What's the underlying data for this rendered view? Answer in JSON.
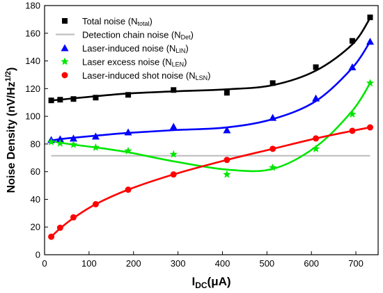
{
  "chart_data": {
    "type": "scatter",
    "xlabel_main": "I",
    "xlabel_sub": "DC",
    "xlabel_unit": "(μA)",
    "ylabel_main": "Noise Density (nV/Hz",
    "ylabel_sup": "1/2",
    "ylabel_end": ")",
    "xlim": [
      0,
      750
    ],
    "ylim": [
      0,
      180
    ],
    "xticks": [
      0,
      100,
      200,
      300,
      400,
      500,
      600,
      700
    ],
    "yticks": [
      0,
      20,
      40,
      60,
      80,
      100,
      120,
      140,
      160,
      180
    ],
    "grid": false,
    "legend_position": "top-left",
    "series": [
      {
        "name": "Total noise (N",
        "sub": "total",
        "close": ")",
        "color": "#000000",
        "marker": "square",
        "x": [
          15,
          35,
          65,
          115,
          188,
          290,
          410,
          513,
          610,
          692,
          732
        ],
        "y": [
          111.5,
          112,
          112.5,
          113.5,
          115.5,
          119,
          117,
          124,
          135.5,
          154.5,
          171.5
        ],
        "fit": [
          111.5,
          112,
          113,
          114.5,
          116.5,
          118,
          119.5,
          122.5,
          133,
          152,
          171
        ]
      },
      {
        "name": "Detection chain noise (N",
        "sub": "Det",
        "close": ")",
        "color": "#bfbfbf",
        "marker": "line",
        "x": [
          15,
          732
        ],
        "y": [
          71.5,
          71.5
        ]
      },
      {
        "name": "Laser-induced noise (N",
        "sub": "LIN",
        "close": ")",
        "color": "#0000ff",
        "marker": "triangle",
        "x": [
          15,
          35,
          65,
          115,
          188,
          290,
          410,
          513,
          610,
          692,
          732
        ],
        "y": [
          83,
          83.5,
          84,
          85.5,
          88.5,
          92.5,
          90,
          99,
          113,
          135.5,
          154
        ],
        "fit": [
          82.5,
          83.5,
          84.5,
          86,
          88,
          90,
          92,
          98,
          111,
          135,
          154
        ]
      },
      {
        "name": "Laser excess noise (N",
        "sub": "LEN",
        "close": ")",
        "color": "#00e600",
        "marker": "star",
        "x": [
          15,
          35,
          65,
          115,
          188,
          290,
          410,
          513,
          610,
          692,
          732
        ],
        "y": [
          81.5,
          80.5,
          79.5,
          77.5,
          75,
          72.5,
          58,
          63,
          76.5,
          101.5,
          124
        ],
        "fit": [
          82,
          81,
          79.5,
          77.5,
          74,
          67.5,
          61.5,
          62,
          78,
          104,
          124
        ]
      },
      {
        "name": "Laser-induced shot noise (N",
        "sub": "LSN",
        "close": ")",
        "color": "#ff0000",
        "marker": "circle",
        "x": [
          15,
          35,
          65,
          115,
          188,
          290,
          410,
          513,
          610,
          692,
          732
        ],
        "y": [
          13,
          19.5,
          27,
          36.5,
          47,
          58,
          68.5,
          76.5,
          84,
          89.5,
          92
        ],
        "fit": [
          13,
          19,
          26.5,
          36.5,
          47,
          58,
          68.5,
          76.5,
          84,
          89.5,
          92
        ]
      }
    ]
  }
}
